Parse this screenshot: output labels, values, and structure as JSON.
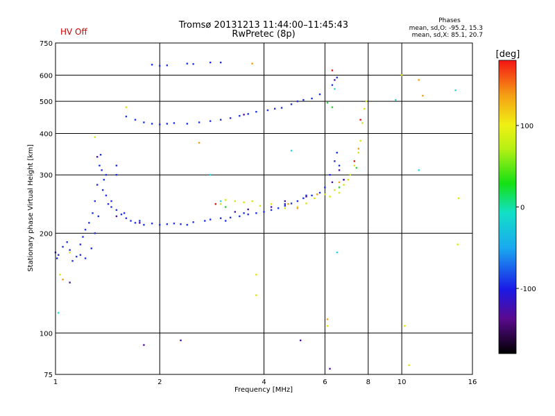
{
  "header": {
    "status": "HV Off",
    "title": "Tromsø 20131213 11:44:00–11:45:43",
    "subtitle": "RwPretec (8p)",
    "phases_title": "Phases",
    "phases_o": "mean, sd,O: -95.2, 15.3",
    "phases_x": "mean, sd,X: 85.1, 20.7"
  },
  "chart_data": {
    "type": "scatter",
    "title": "Tromsø 20131213 11:44:00–11:45:43",
    "subtitle": "RwPretec (8p)",
    "xlabel": "Frequency [MHz]",
    "ylabel": "Stationary phase Virtual Height [km]",
    "x_scale": "log",
    "y_scale": "log",
    "xlim": [
      1,
      16
    ],
    "ylim": [
      75,
      750
    ],
    "x_ticks": [
      1,
      2,
      4,
      6,
      8,
      10,
      16
    ],
    "x_tick_labels": [
      "1",
      "2",
      "4",
      "6",
      "8",
      "10",
      "16"
    ],
    "y_ticks": [
      75,
      100,
      200,
      300,
      400,
      500,
      600,
      750
    ],
    "y_tick_labels": [
      "75",
      "100",
      "200",
      "300",
      "400",
      "500",
      "600",
      "750"
    ],
    "grid": true,
    "colorbar": {
      "label": "[deg]",
      "range": [
        -180,
        180
      ],
      "ticks": [
        -100,
        0,
        100
      ],
      "tick_labels": [
        "-100",
        "0",
        "100"
      ]
    },
    "series": [
      {
        "color": "#1a2fe6",
        "points": [
          [
            1.0,
            175
          ],
          [
            1.01,
            168
          ],
          [
            1.02,
            172
          ],
          [
            1.05,
            182
          ],
          [
            1.08,
            188
          ],
          [
            1.1,
            178
          ],
          [
            1.12,
            165
          ],
          [
            1.15,
            170
          ],
          [
            1.18,
            185
          ],
          [
            1.2,
            195
          ],
          [
            1.22,
            205
          ],
          [
            1.25,
            215
          ],
          [
            1.28,
            230
          ],
          [
            1.3,
            250
          ],
          [
            1.32,
            280
          ],
          [
            1.34,
            320
          ],
          [
            1.35,
            345
          ],
          [
            1.36,
            310
          ],
          [
            1.38,
            290
          ],
          [
            1.4,
            260
          ],
          [
            1.42,
            245
          ],
          [
            1.45,
            240
          ],
          [
            1.5,
            235
          ],
          [
            1.55,
            228
          ],
          [
            1.6,
            222
          ],
          [
            1.65,
            218
          ],
          [
            1.7,
            215
          ],
          [
            1.8,
            212
          ],
          [
            1.9,
            214
          ],
          [
            2.0,
            212
          ],
          [
            2.1,
            213
          ],
          [
            2.2,
            214
          ],
          [
            2.3,
            213
          ],
          [
            2.5,
            216
          ],
          [
            2.7,
            218
          ],
          [
            2.8,
            220
          ],
          [
            3.0,
            222
          ],
          [
            3.2,
            223
          ],
          [
            3.4,
            225
          ],
          [
            3.6,
            228
          ],
          [
            3.8,
            230
          ],
          [
            4.0,
            232
          ],
          [
            4.2,
            235
          ],
          [
            4.4,
            238
          ],
          [
            4.6,
            242
          ],
          [
            4.8,
            246
          ],
          [
            5.0,
            250
          ],
          [
            5.2,
            255
          ],
          [
            5.5,
            260
          ],
          [
            5.8,
            265
          ],
          [
            6.0,
            275
          ],
          [
            6.2,
            300
          ],
          [
            6.4,
            330
          ],
          [
            6.5,
            350
          ],
          [
            6.6,
            320
          ],
          [
            6.8,
            290
          ],
          [
            1.6,
            450
          ],
          [
            1.7,
            440
          ],
          [
            1.8,
            432
          ],
          [
            1.9,
            428
          ],
          [
            2.0,
            426
          ],
          [
            2.1,
            428
          ],
          [
            2.2,
            430
          ],
          [
            2.4,
            428
          ],
          [
            2.6,
            432
          ],
          [
            2.8,
            436
          ],
          [
            3.0,
            440
          ],
          [
            3.2,
            445
          ],
          [
            3.4,
            452
          ],
          [
            3.6,
            458
          ],
          [
            3.8,
            465
          ],
          [
            4.1,
            470
          ],
          [
            4.3,
            475
          ],
          [
            4.5,
            478
          ],
          [
            4.8,
            490
          ],
          [
            5.0,
            500
          ],
          [
            5.2,
            505
          ],
          [
            5.5,
            510
          ],
          [
            5.8,
            525
          ],
          [
            6.3,
            560
          ],
          [
            6.5,
            590
          ],
          [
            1.9,
            645
          ],
          [
            2.0,
            640
          ],
          [
            2.1,
            642
          ],
          [
            2.4,
            650
          ],
          [
            2.5,
            648
          ],
          [
            2.8,
            655
          ],
          [
            3.0,
            655
          ],
          [
            1.18,
            172
          ],
          [
            1.22,
            168
          ],
          [
            1.27,
            180
          ],
          [
            1.3,
            200
          ],
          [
            1.33,
            225
          ],
          [
            1.37,
            270
          ],
          [
            1.4,
            300
          ],
          [
            1.5,
            300
          ],
          [
            1.5,
            320
          ],
          [
            1.45,
            250
          ],
          [
            1.58,
            230
          ],
          [
            1.75,
            218
          ],
          [
            2.4,
            212
          ],
          [
            3.1,
            218
          ],
          [
            3.5,
            230
          ],
          [
            4.6,
            245
          ],
          [
            5.3,
            260
          ]
        ]
      },
      {
        "color": "#4b0fa8",
        "points": [
          [
            1.32,
            340
          ],
          [
            1.5,
            225
          ],
          [
            1.75,
            215
          ],
          [
            3.3,
            232
          ],
          [
            3.6,
            236
          ],
          [
            4.2,
            240
          ],
          [
            4.6,
            250
          ],
          [
            5.3,
            258
          ],
          [
            6.3,
            285
          ],
          [
            6.6,
            310
          ],
          [
            6.8,
            290
          ],
          [
            3.5,
            456
          ],
          [
            6.4,
            580
          ],
          [
            1.8,
            92
          ],
          [
            2.3,
            95
          ],
          [
            5.1,
            95
          ],
          [
            6.2,
            78
          ],
          [
            1.1,
            142
          ]
        ]
      },
      {
        "color": "#2ad8e0",
        "points": [
          [
            2.8,
            300
          ],
          [
            3.0,
            250
          ],
          [
            4.8,
            355
          ],
          [
            6.5,
            175
          ],
          [
            6.4,
            545
          ],
          [
            11.2,
            310
          ],
          [
            14.3,
            540
          ],
          [
            9.6,
            505
          ],
          [
            1.02,
            115
          ]
        ]
      },
      {
        "color": "#33cc33",
        "points": [
          [
            3.1,
            240
          ],
          [
            6.1,
            495
          ],
          [
            6.3,
            480
          ],
          [
            6.6,
            275
          ],
          [
            7.4,
            315
          ]
        ]
      },
      {
        "color": "#d8e614",
        "points": [
          [
            3.0,
            245
          ],
          [
            3.1,
            252
          ],
          [
            3.3,
            250
          ],
          [
            3.5,
            248
          ],
          [
            3.7,
            250
          ],
          [
            4.2,
            245
          ],
          [
            4.6,
            238
          ],
          [
            5.0,
            240
          ],
          [
            5.3,
            246
          ],
          [
            5.6,
            255
          ],
          [
            6.0,
            262
          ],
          [
            6.4,
            270
          ],
          [
            6.8,
            280
          ],
          [
            7.1,
            300
          ],
          [
            7.3,
            320
          ],
          [
            7.5,
            350
          ],
          [
            7.6,
            380
          ],
          [
            7.7,
            430
          ],
          [
            7.8,
            475
          ],
          [
            7.9,
            500
          ],
          [
            7.0,
            290
          ],
          [
            6.6,
            265
          ],
          [
            6.2,
            258
          ],
          [
            3.9,
            242
          ],
          [
            1.3,
            390
          ],
          [
            1.6,
            480
          ],
          [
            1.1,
            175
          ],
          [
            1.03,
            150
          ],
          [
            6.1,
            105
          ],
          [
            10.2,
            105
          ],
          [
            10.5,
            80
          ],
          [
            14.6,
            255
          ],
          [
            14.5,
            185
          ],
          [
            3.8,
            130
          ],
          [
            3.8,
            150
          ],
          [
            10.0,
            600
          ]
        ]
      },
      {
        "color": "#f29a1a",
        "points": [
          [
            4.7,
            245
          ],
          [
            5.0,
            238
          ],
          [
            5.7,
            262
          ],
          [
            6.6,
            285
          ],
          [
            7.5,
            360
          ],
          [
            11.5,
            520
          ],
          [
            11.2,
            580
          ],
          [
            3.7,
            650
          ],
          [
            2.6,
            375
          ],
          [
            6.1,
            110
          ],
          [
            1.05,
            145
          ]
        ]
      },
      {
        "color": "#e51010",
        "points": [
          [
            2.9,
            245
          ],
          [
            7.3,
            330
          ],
          [
            7.6,
            440
          ],
          [
            6.3,
            620
          ]
        ]
      }
    ]
  }
}
